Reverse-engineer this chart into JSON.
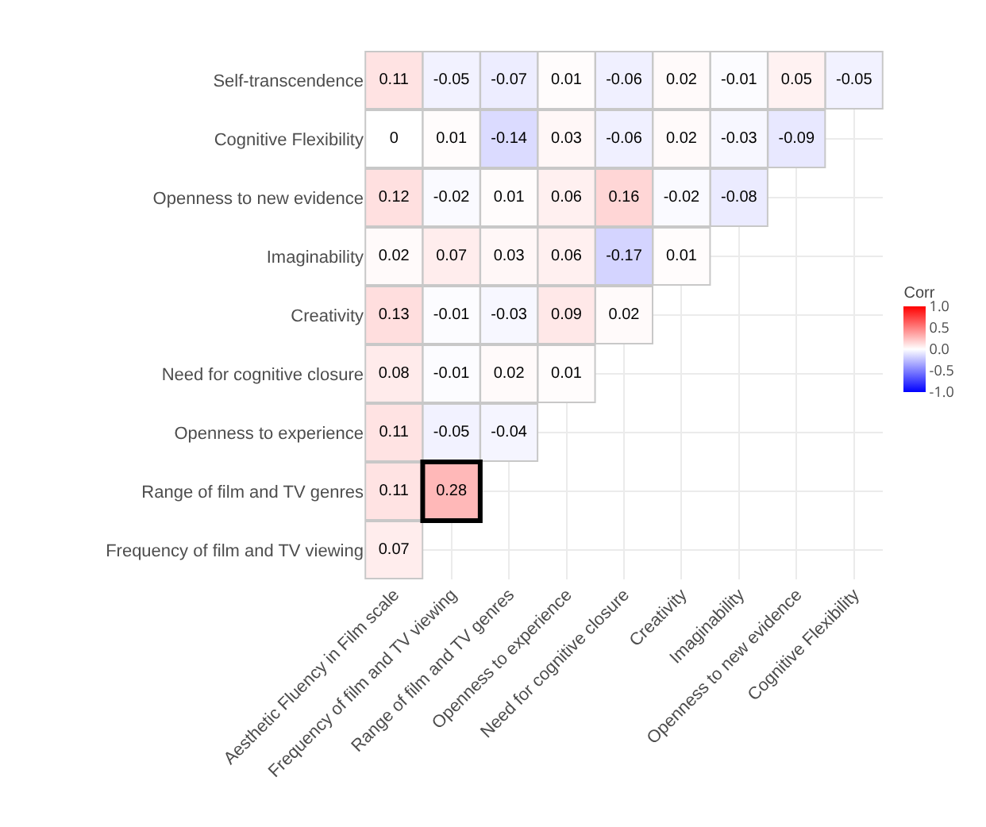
{
  "chart_data": {
    "type": "heatmap",
    "categories": [
      "Aesthetic Fluency in Film scale",
      "Frequency of film and TV viewing",
      "Range of film and TV genres",
      "Openness to experience",
      "Need for cognitive closure",
      "Creativity",
      "Imaginability",
      "Openness to new evidence",
      "Cognitive Flexibility"
    ],
    "y_categories": [
      "Self-transcendence",
      "Cognitive Flexibility",
      "Openness to new evidence",
      "Imaginability",
      "Creativity",
      "Need for cognitive closure",
      "Openness to experience",
      "Range of film and TV genres",
      "Frequency of film and TV viewing"
    ],
    "cells": [
      [
        0.11,
        -0.05,
        -0.07,
        0.01,
        -0.06,
        0.02,
        -0.01,
        0.05,
        -0.05
      ],
      [
        0,
        0.01,
        -0.14,
        0.03,
        -0.06,
        0.02,
        -0.03,
        -0.09,
        null
      ],
      [
        0.12,
        -0.02,
        0.01,
        0.06,
        0.16,
        -0.02,
        -0.08,
        null,
        null
      ],
      [
        0.02,
        0.07,
        0.03,
        0.06,
        -0.17,
        0.01,
        null,
        null,
        null
      ],
      [
        0.13,
        -0.01,
        -0.03,
        0.09,
        0.02,
        null,
        null,
        null,
        null
      ],
      [
        0.08,
        -0.01,
        0.02,
        0.01,
        null,
        null,
        null,
        null,
        null
      ],
      [
        0.11,
        -0.05,
        -0.04,
        null,
        null,
        null,
        null,
        null,
        null
      ],
      [
        0.11,
        0.28,
        null,
        null,
        null,
        null,
        null,
        null,
        null
      ],
      [
        0.07,
        null,
        null,
        null,
        null,
        null,
        null,
        null,
        null
      ]
    ],
    "clim": [
      -1,
      1
    ],
    "cticks": [
      {
        "value": 1,
        "label": "1.0"
      },
      {
        "value": 0.5,
        "label": "0.5"
      },
      {
        "value": 0,
        "label": "0.0"
      },
      {
        "value": -0.5,
        "label": "-0.5"
      },
      {
        "value": -1,
        "label": "-1.0"
      }
    ],
    "clabel": "Corr",
    "data_labels": true,
    "grid": true
  }
}
